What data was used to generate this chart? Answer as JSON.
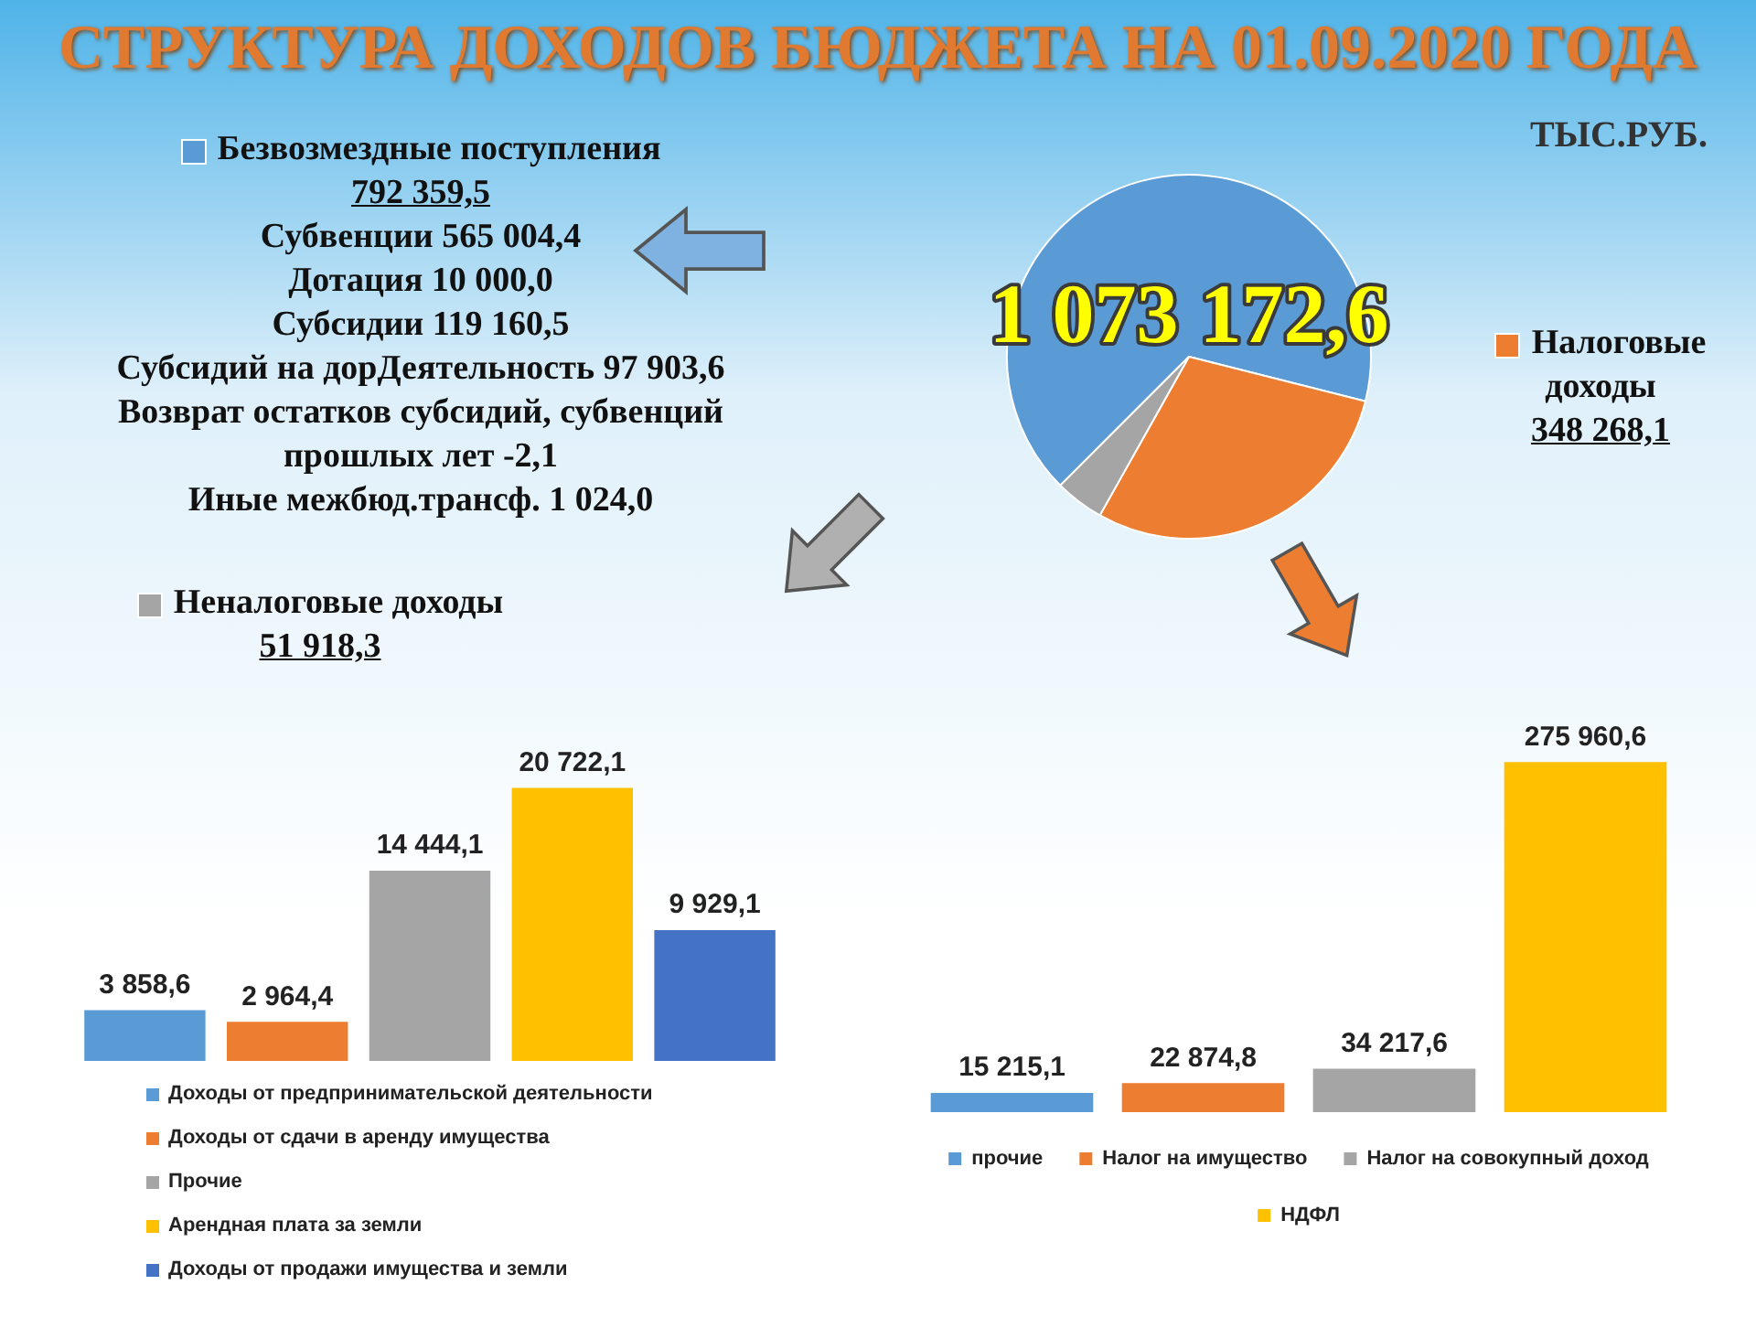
{
  "chart_data": [
    {
      "type": "pie",
      "title": "СТРУКТУРА ДОХОДОВ БЮДЖЕТА НА 01.09.2020 ГОДА",
      "categories": [
        "Безвозмездные поступления",
        "Налоговые доходы",
        "Неналоговые доходы"
      ],
      "values": [
        792359.5,
        348268.1,
        51918.3
      ],
      "value_labels": [
        "792 359,5",
        "348 268,1",
        "51 918,3"
      ],
      "colors": [
        "#5b9bd5",
        "#ed7d31",
        "#a5a5a5"
      ],
      "annotations": [
        "ТЫС.РУБ.",
        "1 073 172,6",
        "Субвенции 565 004,4",
        "Дотация 10 000,0",
        "Субсидии 119 160,5",
        "Субсидий на дорДеятельность 97 903,6",
        "Возврат остатков субсидий, субвенций прошлых лет -2,1",
        "Иные межбюд.трансф. 1 024,0"
      ],
      "legend": "left"
    },
    {
      "type": "bar",
      "categories": [
        null
      ],
      "series": [
        {
          "name": "Доходы от предпринимательской деятельности",
          "color": "#5b9bd5",
          "values": [
            3858.6
          ],
          "value_labels": [
            "3 858,6"
          ]
        },
        {
          "name": "Доходы от сдачи в аренду имущества",
          "color": "#ed7d31",
          "values": [
            2964.4
          ],
          "value_labels": [
            "2 964,4"
          ]
        },
        {
          "name": "Прочие",
          "color": "#a5a5a5",
          "values": [
            14444.1
          ],
          "value_labels": [
            "14 444,1"
          ]
        },
        {
          "name": "Арендная плата за земли",
          "color": "#ffc000",
          "values": [
            20722.1
          ],
          "value_labels": [
            "20 722,1"
          ]
        },
        {
          "name": "Доходы от продажи имущества и земли",
          "color": "#4472c4",
          "values": [
            9929.1
          ],
          "value_labels": [
            "9 929,1"
          ]
        }
      ],
      "legend": "bottom"
    },
    {
      "type": "bar",
      "categories": [
        null
      ],
      "series": [
        {
          "name": "прочие",
          "color": "#5b9bd5",
          "values": [
            15215.1
          ],
          "value_labels": [
            "15 215,1"
          ]
        },
        {
          "name": "Налог на имущество",
          "color": "#ed7d31",
          "values": [
            22874.8
          ],
          "value_labels": [
            "22 874,8"
          ]
        },
        {
          "name": "Налог на совокупный доход",
          "color": "#a5a5a5",
          "values": [
            34217.6
          ],
          "value_labels": [
            "34 217,6"
          ]
        },
        {
          "name": "НДФЛ",
          "color": "#ffc000",
          "values": [
            275960.6
          ],
          "value_labels": [
            "275 960,6"
          ]
        }
      ],
      "legend": "bottom"
    }
  ]
}
